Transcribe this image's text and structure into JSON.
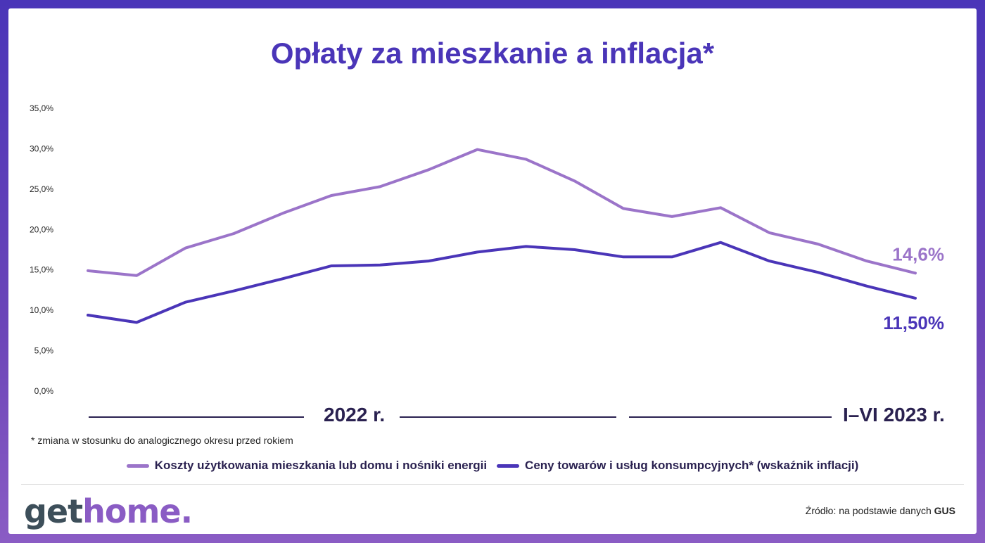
{
  "title": "Opłaty za mieszkanie a inflacja*",
  "footnote": "* zmiana w stosunku do analogicznego okresu przed rokiem",
  "source": {
    "prefix": "Źródło: na podstawie danych",
    "name": "GUS"
  },
  "logo": {
    "part1": "get",
    "part2": "home",
    "dot": "."
  },
  "periods": {
    "first": "2022 r.",
    "second": "I–VI 2023 r."
  },
  "colors": {
    "accent": "#4a35b8",
    "light_series": "#9b74c9",
    "dark_series": "#4a35b8"
  },
  "chart_data": {
    "type": "line",
    "ylim": [
      0,
      35
    ],
    "yticks": [
      "0,0%",
      "5,0%",
      "10,0%",
      "15,0%",
      "20,0%",
      "25,0%",
      "30,0%",
      "35,0%"
    ],
    "grid": false,
    "legend_position": "bottom",
    "series": [
      {
        "name": "Koszty użytkowania mieszkania lub domu i nośniki energii",
        "color": "#9b74c9",
        "values": [
          14.9,
          14.3,
          17.7,
          19.5,
          22.0,
          24.2,
          25.3,
          27.4,
          29.9,
          28.7,
          26.0,
          22.6,
          21.6,
          22.7,
          19.6,
          18.2,
          16.1,
          14.6
        ],
        "end_label": "14,6%"
      },
      {
        "name": "Ceny towarów i usług konsumpcyjnych* (wskaźnik inflacji)",
        "color": "#4a35b8",
        "values": [
          9.4,
          8.5,
          11.0,
          12.4,
          13.9,
          15.5,
          15.6,
          16.1,
          17.2,
          17.9,
          17.5,
          16.6,
          16.6,
          18.4,
          16.1,
          14.7,
          13.0,
          11.5
        ],
        "end_label": "11,50%"
      }
    ]
  }
}
